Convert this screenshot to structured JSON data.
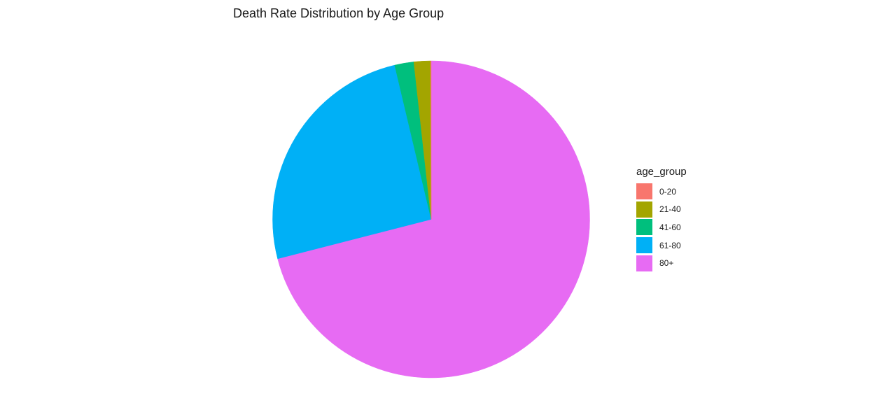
{
  "chart_data": {
    "type": "pie",
    "title": "Death Rate Distribution by Age Group",
    "legend_title": "age_group",
    "legend_position": "right",
    "start_angle_deg": 0,
    "direction": "clockwise-from-top, last-category-first",
    "categories": [
      "0-20",
      "21-40",
      "41-60",
      "61-80",
      "80+"
    ],
    "values": [
      0.05,
      1.7,
      1.95,
      25.3,
      71.0
    ],
    "colors": [
      "#F8766D",
      "#A3A500",
      "#00BF7D",
      "#00B0F6",
      "#E76BF3"
    ]
  }
}
